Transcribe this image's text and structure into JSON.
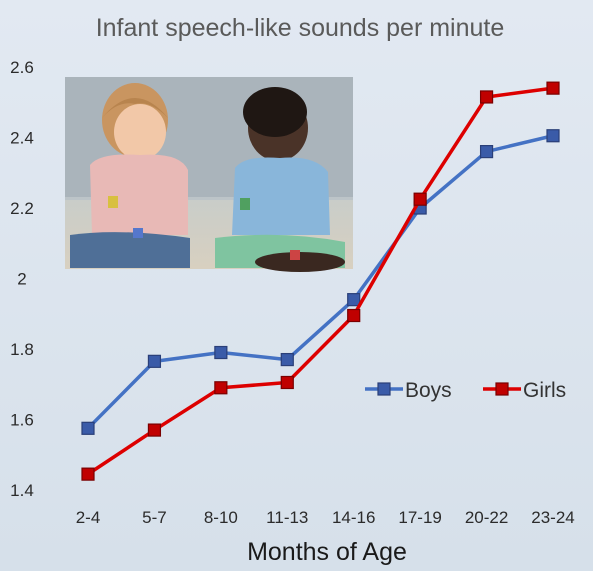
{
  "chart_data": {
    "type": "line",
    "title": "Infant speech-like sounds per minute",
    "xlabel": "Months of Age",
    "ylabel": "",
    "categories": [
      "2-4",
      "5-7",
      "8-10",
      "11-13",
      "14-16",
      "17-19",
      "20-22",
      "23-24"
    ],
    "ylim": [
      1.4,
      2.6
    ],
    "yticks": [
      "1.4",
      "1.6",
      "1.8",
      "2",
      "2.2",
      "2.4",
      "2.6"
    ],
    "grid": false,
    "legend_position": "right",
    "series": [
      {
        "name": "Boys",
        "color": "#4472c4",
        "marker_fill": "#3a5ba8",
        "marker_stroke": "#2a3f78",
        "values": [
          1.575,
          1.765,
          1.79,
          1.77,
          1.94,
          2.2,
          2.36,
          2.405
        ]
      },
      {
        "name": "Girls",
        "color": "#dd0000",
        "marker_fill": "#c00000",
        "marker_stroke": "#7a0000",
        "values": [
          1.445,
          1.57,
          1.69,
          1.705,
          1.895,
          2.225,
          2.515,
          2.54
        ]
      }
    ],
    "photo": {
      "description_icon": "two-toddlers-photo",
      "bg": "#b6bfc4"
    }
  }
}
